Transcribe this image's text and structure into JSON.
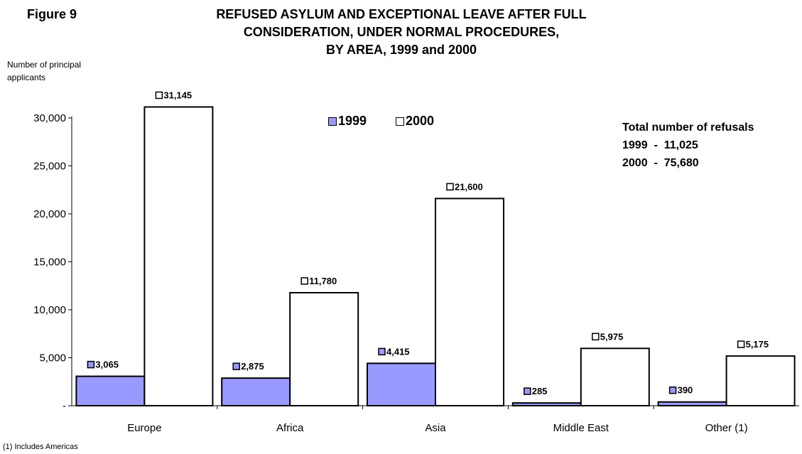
{
  "figure_label": "Figure 9",
  "title_lines": [
    "REFUSED ASYLUM AND EXCEPTIONAL LEAVE AFTER FULL",
    "CONSIDERATION, UNDER NORMAL PROCEDURES,",
    "BY AREA, 1999 and 2000"
  ],
  "ylabel_lines": [
    "Number of principal",
    "applicants"
  ],
  "totals": {
    "heading": "Total number of refusals",
    "line_1999": "1999  -  11,025",
    "line_2000": "2000  -  75,680"
  },
  "footnote": "(1) Includes Americas",
  "colors": {
    "series_1999": "#9999ff",
    "series_2000": "#ffffff",
    "outline": "#000000"
  },
  "chart_data": {
    "type": "bar",
    "categories": [
      "Europe",
      "Africa",
      "Asia",
      "Middle East",
      "Other (1)"
    ],
    "series": [
      {
        "name": "1999",
        "values": [
          3065,
          2875,
          4415,
          285,
          390
        ],
        "labels": [
          "3,065",
          "2,875",
          "4,415",
          "285",
          "390"
        ]
      },
      {
        "name": "2000",
        "values": [
          31145,
          11780,
          21600,
          5975,
          5175
        ],
        "labels": [
          "31,145",
          "11,780",
          "21,600",
          "5,975",
          "5,175"
        ]
      }
    ],
    "ylim": [
      0,
      30000
    ],
    "yticks": [
      0,
      5000,
      10000,
      15000,
      20000,
      25000,
      30000
    ],
    "ytick_labels": [
      "-",
      "5,000",
      "10,000",
      "15,000",
      "20,000",
      "25,000",
      "30,000"
    ],
    "legend_position": "top-center",
    "grid": false
  }
}
